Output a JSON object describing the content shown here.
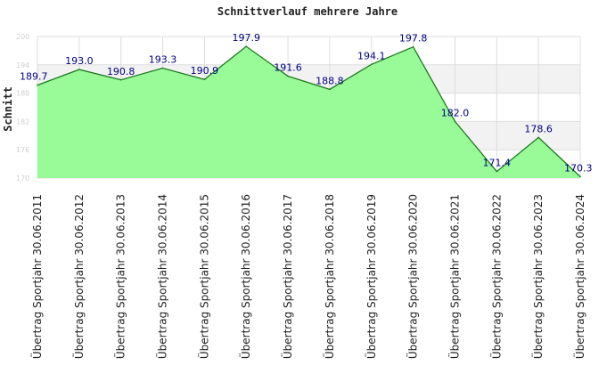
{
  "chart_data": {
    "type": "area",
    "title": "Schnittverlauf mehrere Jahre",
    "xlabel": "",
    "ylabel": "Schnitt",
    "categories": [
      "Übertrag Sportjahr 30.06.2011",
      "Übertrag Sportjahr 30.06.2012",
      "Übertrag Sportjahr 30.06.2013",
      "Übertrag Sportjahr 30.06.2014",
      "Übertrag Sportjahr 30.06.2015",
      "Übertrag Sportjahr 30.06.2016",
      "Übertrag Sportjahr 30.06.2017",
      "Übertrag Sportjahr 30.06.2018",
      "Übertrag Sportjahr 30.06.2019",
      "Übertrag Sportjahr 30.06.2020",
      "Übertrag Sportjahr 30.06.2021",
      "Übertrag Sportjahr 30.06.2022",
      "Übertrag Sportjahr 30.06.2023",
      "Übertrag Sportjahr 30.06.2024"
    ],
    "values": [
      189.7,
      193.0,
      190.8,
      193.3,
      190.9,
      197.9,
      191.6,
      188.8,
      194.1,
      197.8,
      182.0,
      171.4,
      178.6,
      170.3
    ],
    "value_labels": [
      "189.7",
      "193.0",
      "190.8",
      "193.3",
      "190.9",
      "197.9",
      "191.6",
      "188.8",
      "194.1",
      "197.8",
      "182.0",
      "171.4",
      "178.6",
      "170.3"
    ],
    "yticks": [
      170,
      176,
      182,
      188,
      194,
      200
    ],
    "ytick_labels": [
      "170",
      "176",
      "182",
      "188",
      "194",
      "200"
    ],
    "ylim": [
      170,
      200
    ],
    "grid": true,
    "legend": "none",
    "colors": {
      "fill": "#98fb98",
      "line": "#1e7b1e",
      "band": "#f2f2f2",
      "grid": "#dddddd",
      "label": "#000080"
    }
  }
}
